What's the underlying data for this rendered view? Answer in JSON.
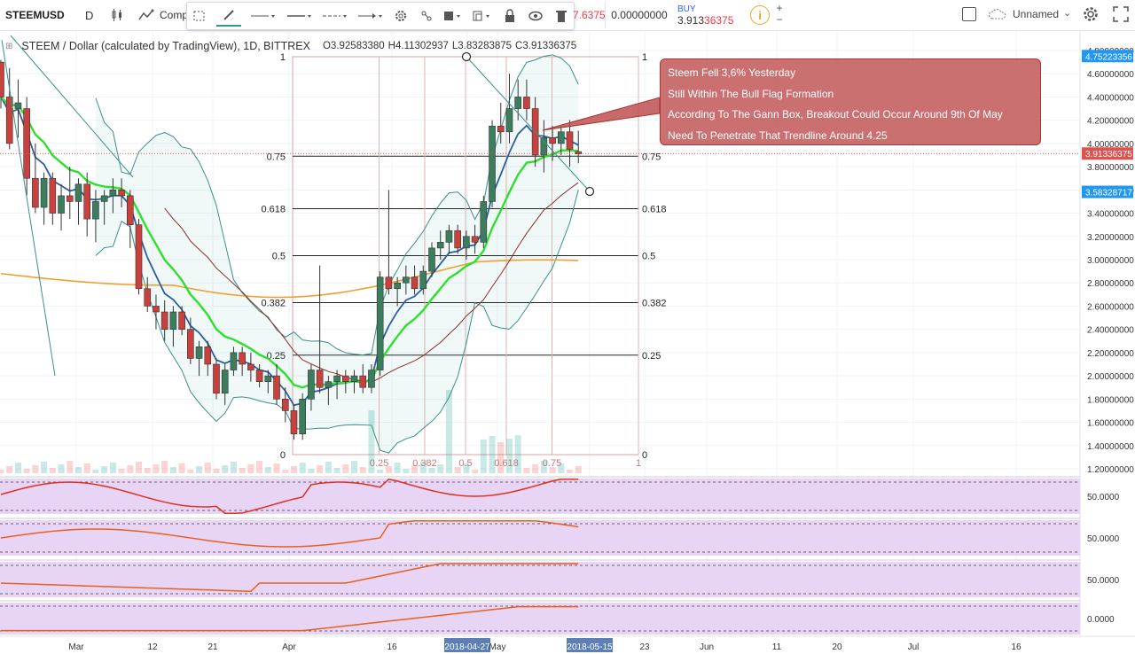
{
  "toolbar": {
    "symbol": "STEEMUSD",
    "interval": "D",
    "compare_label": "Comp",
    "sell_price_fragment": "7.6375",
    "quantity": "0.00000000",
    "buy_label": "BUY",
    "buy_price_main": "3.913",
    "buy_price_accent": "36375",
    "layout_name": "Unnamed"
  },
  "legend": {
    "title": "STEEM / Dollar (calculated by TradingView), 1D, BITTREX",
    "open": "O3.92583380",
    "high": "H4.11302937",
    "low": "L3.83283875",
    "close": "C3.91336375"
  },
  "callout": {
    "lines": [
      "Steem Fell 3,6% Yesterday",
      "Still Within The Bull Flag Formation",
      "According To The Gann Box, Breakout Could Occur Around 9th Of May",
      "Need To Penetrate That Trendline Around 4.25"
    ]
  },
  "chart_data": {
    "type": "candlestick",
    "symbol": "STEEMUSD",
    "interval": "1D",
    "exchange": "BITTREX",
    "ylim": [
      1.15,
      4.9
    ],
    "y_ticks": [
      "4.80000000",
      "4.60000000",
      "4.40000000",
      "4.20000000",
      "4.00000000",
      "3.80000000",
      "3.60000000",
      "3.40000000",
      "3.20000000",
      "3.00000000",
      "2.80000000",
      "2.60000000",
      "2.40000000",
      "2.20000000",
      "2.00000000",
      "1.80000000",
      "1.60000000",
      "1.40000000",
      "1.20000000"
    ],
    "price_labels": [
      {
        "value": 4.75223356,
        "text": "4.75223356",
        "color": "#2196f3"
      },
      {
        "value": 3.91336375,
        "text": "3.91336375",
        "color": "#e0524e"
      },
      {
        "value": 3.58328717,
        "text": "3.58328717",
        "color": "#2196f3"
      }
    ],
    "x_ticks": [
      "Mar",
      "12",
      "21",
      "Apr",
      "16",
      "2018-04-27",
      "May",
      "2018-05-15",
      "23",
      "Jun",
      "11",
      "20",
      "Jul",
      "16"
    ],
    "candles": [
      [
        4.7,
        4.72,
        4.3,
        4.4
      ],
      [
        4.4,
        4.65,
        3.95,
        4.0
      ],
      [
        4.3,
        4.55,
        4.05,
        4.35
      ],
      [
        4.3,
        4.4,
        3.55,
        3.7
      ],
      [
        3.7,
        4.0,
        3.4,
        3.45
      ],
      [
        3.45,
        3.75,
        3.3,
        3.7
      ],
      [
        3.7,
        3.75,
        3.3,
        3.4
      ],
      [
        3.4,
        3.65,
        3.25,
        3.55
      ],
      [
        3.55,
        3.8,
        3.35,
        3.5
      ],
      [
        3.5,
        3.7,
        3.3,
        3.65
      ],
      [
        3.65,
        3.75,
        3.2,
        3.35
      ],
      [
        3.35,
        3.6,
        3.15,
        3.5
      ],
      [
        3.5,
        3.6,
        3.3,
        3.55
      ],
      [
        3.55,
        3.7,
        3.4,
        3.6
      ],
      [
        3.6,
        3.7,
        3.45,
        3.55
      ],
      [
        3.55,
        3.6,
        3.1,
        3.3
      ],
      [
        3.3,
        3.35,
        2.7,
        2.75
      ],
      [
        2.75,
        2.85,
        2.55,
        2.6
      ],
      [
        2.6,
        2.7,
        2.4,
        2.55
      ],
      [
        2.55,
        2.65,
        2.3,
        2.4
      ],
      [
        2.4,
        2.6,
        2.25,
        2.55
      ],
      [
        2.55,
        2.6,
        2.35,
        2.4
      ],
      [
        2.4,
        2.5,
        2.1,
        2.15
      ],
      [
        2.15,
        2.3,
        2.0,
        2.25
      ],
      [
        2.25,
        2.3,
        2.0,
        2.1
      ],
      [
        2.1,
        2.15,
        1.8,
        1.85
      ],
      [
        1.85,
        2.1,
        1.75,
        2.05
      ],
      [
        2.05,
        2.25,
        2.0,
        2.2
      ],
      [
        2.2,
        2.25,
        2.0,
        2.1
      ],
      [
        2.1,
        2.2,
        1.95,
        2.05
      ],
      [
        2.05,
        2.1,
        1.9,
        1.95
      ],
      [
        1.95,
        2.05,
        1.85,
        2.0
      ],
      [
        2.0,
        2.1,
        1.75,
        1.8
      ],
      [
        1.8,
        1.9,
        1.6,
        1.7
      ],
      [
        1.7,
        1.75,
        1.45,
        1.5
      ],
      [
        1.5,
        1.85,
        1.45,
        1.8
      ],
      [
        1.8,
        2.1,
        1.7,
        2.05
      ],
      [
        2.05,
        2.95,
        1.85,
        1.9
      ],
      [
        1.9,
        2.0,
        1.75,
        1.95
      ],
      [
        1.95,
        2.05,
        1.8,
        2.0
      ],
      [
        2.0,
        2.05,
        1.85,
        1.95
      ],
      [
        1.95,
        2.05,
        1.85,
        2.0
      ],
      [
        2.0,
        2.1,
        1.85,
        1.9
      ],
      [
        1.9,
        2.1,
        1.85,
        2.05
      ],
      [
        2.05,
        2.9,
        2.0,
        2.85
      ],
      [
        2.85,
        3.6,
        2.7,
        2.75
      ],
      [
        2.75,
        2.85,
        2.6,
        2.8
      ],
      [
        2.8,
        2.95,
        2.7,
        2.85
      ],
      [
        2.85,
        2.95,
        2.7,
        2.75
      ],
      [
        2.75,
        2.95,
        2.7,
        2.9
      ],
      [
        2.9,
        3.15,
        2.85,
        3.1
      ],
      [
        3.1,
        3.25,
        3.0,
        3.15
      ],
      [
        3.15,
        3.3,
        3.05,
        3.25
      ],
      [
        3.25,
        3.3,
        3.05,
        3.1
      ],
      [
        3.1,
        3.25,
        3.0,
        3.2
      ],
      [
        3.2,
        3.3,
        3.05,
        3.15
      ],
      [
        3.15,
        3.55,
        3.1,
        3.5
      ],
      [
        3.5,
        4.2,
        3.45,
        4.15
      ],
      [
        4.15,
        4.35,
        4.0,
        4.1
      ],
      [
        4.1,
        4.6,
        4.0,
        4.3
      ],
      [
        4.3,
        4.55,
        4.2,
        4.4
      ],
      [
        4.4,
        4.55,
        4.2,
        4.3
      ],
      [
        4.3,
        4.4,
        3.8,
        3.9
      ],
      [
        3.9,
        4.2,
        3.75,
        4.05
      ],
      [
        4.05,
        4.15,
        3.85,
        4.0
      ],
      [
        4.0,
        4.15,
        3.9,
        4.1
      ],
      [
        4.1,
        4.2,
        3.8,
        3.95
      ],
      [
        3.93,
        4.11,
        3.83,
        3.91
      ]
    ],
    "gann_box": {
      "levels": [
        "0",
        "0.25",
        "0.382",
        "0.5",
        "0.618",
        "0.75",
        "1"
      ],
      "time_levels": [
        "0.25",
        "0.382",
        "0.5",
        "0.618",
        "0.75",
        "1"
      ]
    },
    "indicators": [
      "Bollinger Bands",
      "EMA",
      "SMA",
      "Volume",
      "4 oscillators"
    ],
    "oscillator_labels": [
      "50.0000",
      "50.0000",
      "50.0000",
      "0.0000"
    ]
  }
}
